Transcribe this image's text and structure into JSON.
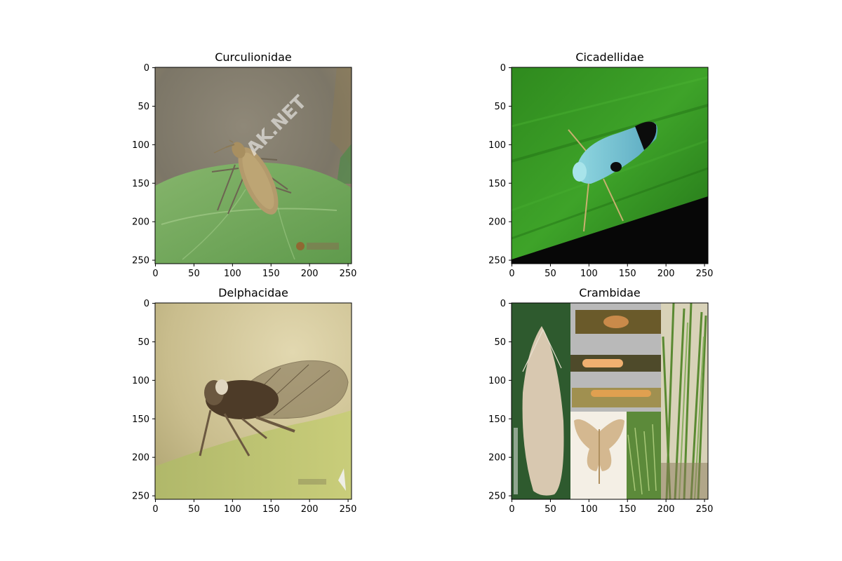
{
  "figure": {
    "background": "#ffffff",
    "panels": [
      {
        "title": "Curculionidae",
        "image": "weevil-on-leaf",
        "watermark": "AK.NET",
        "xticks": [
          "0",
          "50",
          "100",
          "150",
          "200",
          "250"
        ],
        "yticks": [
          "0",
          "50",
          "100",
          "150",
          "200",
          "250"
        ],
        "xlim": [
          0,
          255
        ],
        "ylim": [
          255,
          0
        ]
      },
      {
        "title": "Cicadellidae",
        "image": "leafhopper-on-grass-blade",
        "xticks": [
          "0",
          "50",
          "100",
          "150",
          "200",
          "250"
        ],
        "yticks": [
          "0",
          "50",
          "100",
          "150",
          "200",
          "250"
        ],
        "xlim": [
          0,
          255
        ],
        "ylim": [
          255,
          0
        ]
      },
      {
        "title": "Delphacidae",
        "image": "planthopper-on-leaf",
        "xticks": [
          "0",
          "50",
          "100",
          "150",
          "200",
          "250"
        ],
        "yticks": [
          "0",
          "50",
          "100",
          "150",
          "200",
          "250"
        ],
        "xlim": [
          0,
          255
        ],
        "ylim": [
          255,
          0
        ]
      },
      {
        "title": "Crambidae",
        "image": "moth-and-larvae-collage",
        "xticks": [
          "0",
          "50",
          "100",
          "150",
          "200",
          "250"
        ],
        "yticks": [
          "0",
          "50",
          "100",
          "150",
          "200",
          "250"
        ],
        "xlim": [
          0,
          255
        ],
        "ylim": [
          255,
          0
        ]
      }
    ]
  }
}
